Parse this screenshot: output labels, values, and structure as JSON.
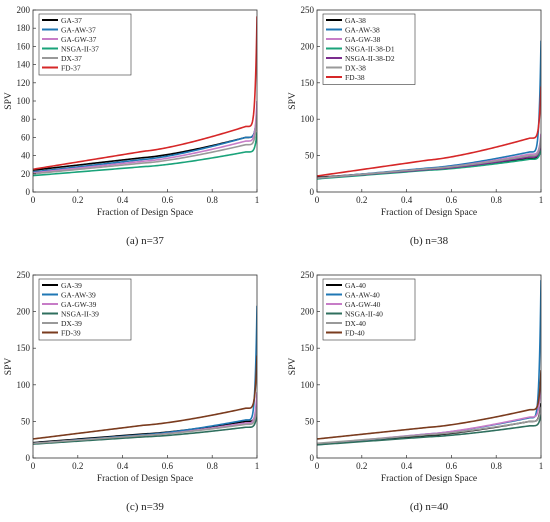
{
  "chart_data": [
    {
      "type": "line",
      "caption": "(a) n=37",
      "xlabel": "Fraction of Design Space",
      "ylabel": "SPV",
      "xlim": [
        0,
        1
      ],
      "ylim": [
        0,
        200
      ],
      "xticks": [
        0,
        0.2,
        0.4,
        0.6,
        0.8,
        1
      ],
      "yticks": [
        0,
        20,
        40,
        60,
        80,
        100,
        120,
        140,
        160,
        180,
        200
      ],
      "grid": false,
      "legend_position": "top-left",
      "series": [
        {
          "name": "GA-37",
          "color": "#000000",
          "start": 24,
          "mid": 38,
          "end": 60,
          "max": 88
        },
        {
          "name": "GA-AW-37",
          "color": "#1f77b4",
          "start": 22,
          "mid": 36,
          "end": 60,
          "max": 88
        },
        {
          "name": "GA-GW-37",
          "color": "#c77cc7",
          "start": 21,
          "mid": 34,
          "end": 56,
          "max": 100
        },
        {
          "name": "NSGA-II-37",
          "color": "#1aa37a",
          "start": 18,
          "mid": 28,
          "end": 44,
          "max": 66
        },
        {
          "name": "DX-37",
          "color": "#999999",
          "start": 20,
          "mid": 32,
          "end": 52,
          "max": 85
        },
        {
          "name": "FD-37",
          "color": "#d62728",
          "start": 25,
          "mid": 45,
          "end": 72,
          "max": 193
        }
      ]
    },
    {
      "type": "line",
      "caption": "(b) n=38",
      "xlabel": "Fraction of Design Space",
      "ylabel": "SPV",
      "xlim": [
        0,
        1
      ],
      "ylim": [
        0,
        250
      ],
      "xticks": [
        0,
        0.2,
        0.4,
        0.6,
        0.8,
        1
      ],
      "yticks": [
        0,
        50,
        100,
        150,
        200,
        250
      ],
      "grid": false,
      "legend_position": "top-left",
      "series": [
        {
          "name": "GA-38",
          "color": "#000000",
          "start": 20,
          "mid": 31,
          "end": 46,
          "max": 60
        },
        {
          "name": "GA-AW-38",
          "color": "#1f77b4",
          "start": 19,
          "mid": 33,
          "end": 55,
          "max": 208
        },
        {
          "name": "GA-GW-38",
          "color": "#c77cc7",
          "start": 19,
          "mid": 32,
          "end": 52,
          "max": 80
        },
        {
          "name": "NSGA-II-38-D1",
          "color": "#1aa37a",
          "start": 18,
          "mid": 30,
          "end": 45,
          "max": 60
        },
        {
          "name": "NSGA-II-38-D2",
          "color": "#7b2d8e",
          "start": 19,
          "mid": 31,
          "end": 48,
          "max": 70
        },
        {
          "name": "DX-38",
          "color": "#999999",
          "start": 19,
          "mid": 32,
          "end": 50,
          "max": 75
        },
        {
          "name": "FD-38",
          "color": "#d62728",
          "start": 22,
          "mid": 44,
          "end": 74,
          "max": 145
        }
      ]
    },
    {
      "type": "line",
      "caption": "(c) n=39",
      "xlabel": "Fraction of Design Space",
      "ylabel": "SPV",
      "xlim": [
        0,
        1
      ],
      "ylim": [
        0,
        250
      ],
      "xticks": [
        0,
        0.2,
        0.4,
        0.6,
        0.8,
        1
      ],
      "yticks": [
        0,
        50,
        100,
        150,
        200,
        250
      ],
      "grid": false,
      "legend_position": "top-left",
      "series": [
        {
          "name": "GA-39",
          "color": "#000000",
          "start": 21,
          "mid": 33,
          "end": 50,
          "max": 75
        },
        {
          "name": "GA-AW-39",
          "color": "#1f77b4",
          "start": 20,
          "mid": 32,
          "end": 52,
          "max": 208
        },
        {
          "name": "GA-GW-39",
          "color": "#c77cc7",
          "start": 20,
          "mid": 31,
          "end": 48,
          "max": 90
        },
        {
          "name": "NSGA-II-39",
          "color": "#2f6f5e",
          "start": 19,
          "mid": 29,
          "end": 42,
          "max": 60
        },
        {
          "name": "DX-39",
          "color": "#999999",
          "start": 20,
          "mid": 31,
          "end": 46,
          "max": 70
        },
        {
          "name": "FD-39",
          "color": "#7a3b1e",
          "start": 26,
          "mid": 45,
          "end": 68,
          "max": 140
        }
      ]
    },
    {
      "type": "line",
      "caption": "(d) n=40",
      "xlabel": "Fraction of Design Space",
      "ylabel": "SPV",
      "xlim": [
        0,
        1
      ],
      "ylim": [
        0,
        250
      ],
      "xticks": [
        0,
        0.2,
        0.4,
        0.6,
        0.8,
        1
      ],
      "yticks": [
        0,
        50,
        100,
        150,
        200,
        250
      ],
      "grid": false,
      "legend_position": "top-left",
      "series": [
        {
          "name": "GA-40",
          "color": "#000000",
          "start": 19,
          "mid": 31,
          "end": 50,
          "max": 75
        },
        {
          "name": "GA-AW-40",
          "color": "#1f77b4",
          "start": 18,
          "mid": 33,
          "end": 55,
          "max": 243
        },
        {
          "name": "GA-GW-40",
          "color": "#c77cc7",
          "start": 19,
          "mid": 33,
          "end": 56,
          "max": 110
        },
        {
          "name": "NSGA-II-40",
          "color": "#2f6f5e",
          "start": 18,
          "mid": 29,
          "end": 44,
          "max": 60
        },
        {
          "name": "DX-40",
          "color": "#999999",
          "start": 20,
          "mid": 32,
          "end": 50,
          "max": 70
        },
        {
          "name": "FD-40",
          "color": "#7a3b1e",
          "start": 26,
          "mid": 42,
          "end": 66,
          "max": 120
        }
      ]
    }
  ]
}
